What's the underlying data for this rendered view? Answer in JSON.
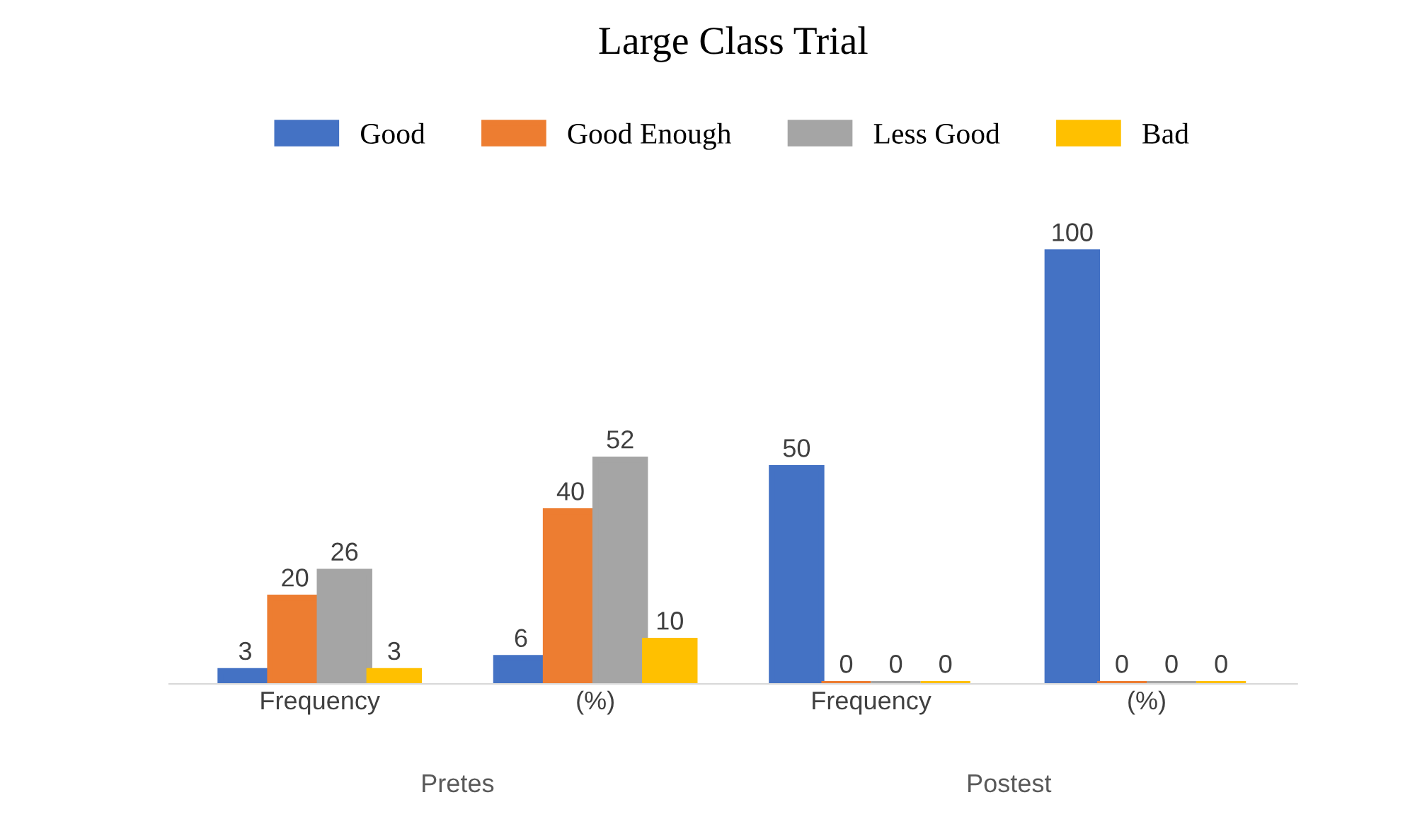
{
  "chart_data": {
    "type": "bar",
    "title": "Large Class Trial",
    "categories": [
      "Frequency",
      "(%)",
      "Frequency",
      "(%)"
    ],
    "series": [
      {
        "name": "Good",
        "color": "#4472c4",
        "values": [
          3,
          6,
          50,
          100
        ]
      },
      {
        "name": "Good Enough",
        "color": "#ed7d31",
        "values": [
          20,
          40,
          0,
          0
        ]
      },
      {
        "name": "Less Good",
        "color": "#a5a5a5",
        "values": [
          26,
          52,
          0,
          0
        ]
      },
      {
        "name": "Bad",
        "color": "#ffc000",
        "values": [
          3,
          10,
          0,
          0
        ]
      }
    ],
    "data_labels": true,
    "legend": "top",
    "grid": false,
    "tick_labels": "x",
    "annotations": [
      "Pretes",
      "Postest"
    ]
  }
}
